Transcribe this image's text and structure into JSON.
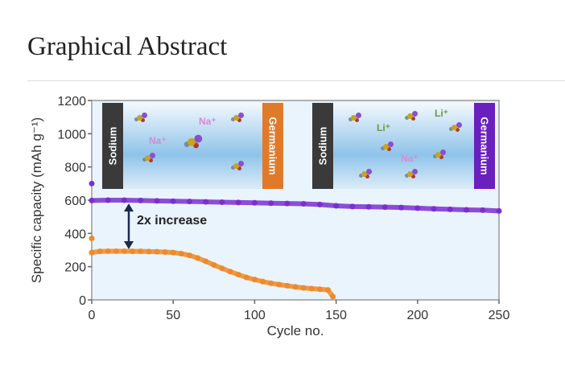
{
  "page": {
    "heading": "Graphical Abstract"
  },
  "chart_data": {
    "type": "scatter",
    "xlabel": "Cycle no.",
    "ylabel": "Specific capacity (mAh g⁻¹)",
    "xlim": [
      0,
      250
    ],
    "ylim": [
      0,
      1200
    ],
    "xticks": [
      0,
      50,
      100,
      150,
      200,
      250
    ],
    "yticks": [
      0,
      200,
      400,
      600,
      800,
      1000,
      1200
    ],
    "grid": false,
    "colors": {
      "purple": "#7a2fd0",
      "orange": "#ee8a2a",
      "plot_bg": "#eaf4fc"
    },
    "series": [
      {
        "color": "purple",
        "first_point": [
          0,
          700
        ],
        "x": [
          0,
          10,
          20,
          30,
          40,
          50,
          60,
          70,
          80,
          90,
          100,
          110,
          120,
          130,
          140,
          150,
          160,
          170,
          180,
          190,
          200,
          210,
          220,
          230,
          240,
          250
        ],
        "y": [
          598,
          600,
          600,
          598,
          596,
          594,
          592,
          590,
          588,
          586,
          584,
          582,
          580,
          578,
          574,
          566,
          562,
          560,
          558,
          556,
          552,
          548,
          545,
          542,
          540,
          535
        ]
      },
      {
        "color": "orange",
        "first_point": [
          0,
          370
        ],
        "x": [
          0,
          5,
          10,
          15,
          20,
          25,
          30,
          35,
          40,
          45,
          50,
          55,
          60,
          65,
          70,
          75,
          80,
          85,
          90,
          95,
          100,
          105,
          110,
          115,
          120,
          125,
          130,
          135,
          140,
          145,
          148
        ],
        "y": [
          285,
          292,
          293,
          293,
          293,
          292,
          292,
          291,
          290,
          288,
          285,
          278,
          268,
          252,
          232,
          210,
          190,
          170,
          152,
          135,
          122,
          110,
          100,
          92,
          85,
          78,
          72,
          68,
          64,
          60,
          20
        ]
      }
    ],
    "annotations": {
      "arrow_label": "2x increase"
    },
    "insets": [
      {
        "left_label": "Sodium",
        "right_label": "Germanium",
        "right_color": "#e07a2a",
        "ions": [
          "Na⁺",
          "Na⁺"
        ]
      },
      {
        "left_label": "Sodium",
        "right_label": "Germanium",
        "right_color": "#6a1fc0",
        "ions": [
          "Li⁺",
          "Li⁺",
          "Na⁺"
        ]
      }
    ]
  }
}
